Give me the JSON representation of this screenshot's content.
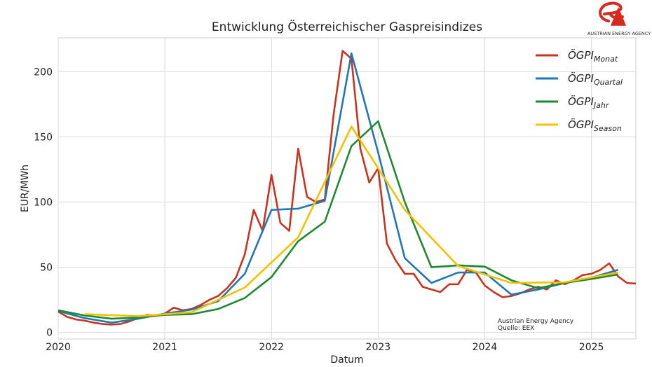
{
  "chart_data": {
    "type": "line",
    "title": "Entwicklung Österreichischer Gaspreisindizes",
    "xlabel": "Datum",
    "ylabel": "EUR/MWh",
    "xlim": [
      "2020-01",
      "2025-06"
    ],
    "ylim": [
      -5,
      226
    ],
    "x_ticks": [
      "2020",
      "2021",
      "2022",
      "2023",
      "2024",
      "2025"
    ],
    "y_ticks": [
      0,
      50,
      100,
      150,
      200
    ],
    "grid": true,
    "legend_position": "top-right",
    "series": [
      {
        "name_base": "ÖGPI",
        "name_sub": "Monat",
        "color": "#c8341e",
        "points": [
          [
            "2020-01",
            16
          ],
          [
            "2020-02",
            12
          ],
          [
            "2020-03",
            10
          ],
          [
            "2020-04",
            9
          ],
          [
            "2020-05",
            7.5
          ],
          [
            "2020-06",
            6.5
          ],
          [
            "2020-07",
            6
          ],
          [
            "2020-08",
            6.5
          ],
          [
            "2020-09",
            8.5
          ],
          [
            "2020-10",
            11
          ],
          [
            "2020-11",
            13.5
          ],
          [
            "2020-12",
            13
          ],
          [
            "2021-01",
            14.5
          ],
          [
            "2021-02",
            19
          ],
          [
            "2021-03",
            17
          ],
          [
            "2021-04",
            18
          ],
          [
            "2021-05",
            21
          ],
          [
            "2021-06",
            25
          ],
          [
            "2021-07",
            28
          ],
          [
            "2021-08",
            34
          ],
          [
            "2021-09",
            42
          ],
          [
            "2021-10",
            60
          ],
          [
            "2021-11",
            94
          ],
          [
            "2021-12",
            78
          ],
          [
            "2022-01",
            121
          ],
          [
            "2022-02",
            84
          ],
          [
            "2022-03",
            78
          ],
          [
            "2022-04",
            141
          ],
          [
            "2022-05",
            104
          ],
          [
            "2022-06",
            100
          ],
          [
            "2022-07",
            102
          ],
          [
            "2022-08",
            168
          ],
          [
            "2022-09",
            216
          ],
          [
            "2022-10",
            210
          ],
          [
            "2022-11",
            141
          ],
          [
            "2022-12",
            115
          ],
          [
            "2023-01",
            126
          ],
          [
            "2023-02",
            68
          ],
          [
            "2023-03",
            55
          ],
          [
            "2023-04",
            45
          ],
          [
            "2023-05",
            45
          ],
          [
            "2023-06",
            35
          ],
          [
            "2023-07",
            33
          ],
          [
            "2023-08",
            31
          ],
          [
            "2023-09",
            37
          ],
          [
            "2023-10",
            37
          ],
          [
            "2023-11",
            48
          ],
          [
            "2023-12",
            46
          ],
          [
            "2024-01",
            36
          ],
          [
            "2024-02",
            31
          ],
          [
            "2024-03",
            27
          ],
          [
            "2024-04",
            28
          ],
          [
            "2024-05",
            30
          ],
          [
            "2024-06",
            33
          ],
          [
            "2024-07",
            35
          ],
          [
            "2024-08",
            33
          ],
          [
            "2024-09",
            40
          ],
          [
            "2024-10",
            37
          ],
          [
            "2024-11",
            40
          ],
          [
            "2024-12",
            44
          ],
          [
            "2025-01",
            45
          ],
          [
            "2025-02",
            48
          ],
          [
            "2025-03",
            53
          ],
          [
            "2025-04",
            43
          ],
          [
            "2025-05",
            38
          ],
          [
            "2025-06",
            37.5
          ]
        ]
      },
      {
        "name_base": "ÖGPI",
        "name_sub": "Quartal",
        "color": "#1f77b4",
        "points": [
          [
            "2020-01",
            16.5
          ],
          [
            "2020-04",
            11
          ],
          [
            "2020-07",
            7.5
          ],
          [
            "2020-10",
            10.5
          ],
          [
            "2021-01",
            14.5
          ],
          [
            "2021-04",
            17.5
          ],
          [
            "2021-07",
            24
          ],
          [
            "2021-10",
            45
          ],
          [
            "2022-01",
            94
          ],
          [
            "2022-04",
            95
          ],
          [
            "2022-07",
            101
          ],
          [
            "2022-10",
            214
          ],
          [
            "2023-01",
            138
          ],
          [
            "2023-04",
            57
          ],
          [
            "2023-07",
            38
          ],
          [
            "2023-10",
            46
          ],
          [
            "2024-01",
            46
          ],
          [
            "2024-04",
            29
          ],
          [
            "2024-07",
            33
          ],
          [
            "2024-10",
            38
          ],
          [
            "2025-01",
            42
          ],
          [
            "2025-04",
            48
          ]
        ]
      },
      {
        "name_base": "ÖGPI",
        "name_sub": "Jahr",
        "color": "#1e8a30",
        "points": [
          [
            "2020-01",
            17
          ],
          [
            "2020-04",
            13
          ],
          [
            "2020-07",
            10.5
          ],
          [
            "2020-10",
            11.5
          ],
          [
            "2021-01",
            13.5
          ],
          [
            "2021-04",
            14
          ],
          [
            "2021-07",
            18
          ],
          [
            "2021-10",
            26.5
          ],
          [
            "2022-01",
            42.5
          ],
          [
            "2022-04",
            70
          ],
          [
            "2022-07",
            85
          ],
          [
            "2022-10",
            143
          ],
          [
            "2023-01",
            162
          ],
          [
            "2023-04",
            100
          ],
          [
            "2023-07",
            50
          ],
          [
            "2023-10",
            51.5
          ],
          [
            "2024-01",
            50.5
          ],
          [
            "2024-04",
            40
          ],
          [
            "2024-07",
            34
          ],
          [
            "2024-10",
            38
          ],
          [
            "2025-01",
            41
          ],
          [
            "2025-04",
            44.5
          ]
        ]
      },
      {
        "name_base": "ÖGPI",
        "name_sub": "Season",
        "color": "#f5c000",
        "points": [
          [
            "2020-04",
            14
          ],
          [
            "2020-10",
            12.5
          ],
          [
            "2021-04",
            15.5
          ],
          [
            "2021-10",
            34.5
          ],
          [
            "2022-04",
            73
          ],
          [
            "2022-10",
            158
          ],
          [
            "2023-04",
            94
          ],
          [
            "2023-10",
            51
          ],
          [
            "2024-04",
            38
          ],
          [
            "2024-10",
            38.5
          ],
          [
            "2025-04",
            46
          ]
        ]
      }
    ]
  },
  "source_note": {
    "line1": "Austrian Energy Agency",
    "line2": "Quelle: EEX"
  },
  "logo": {
    "letters": "eA",
    "caption": "AUSTRIAN ENERGY AGENCY",
    "color": "#d42b1e"
  }
}
